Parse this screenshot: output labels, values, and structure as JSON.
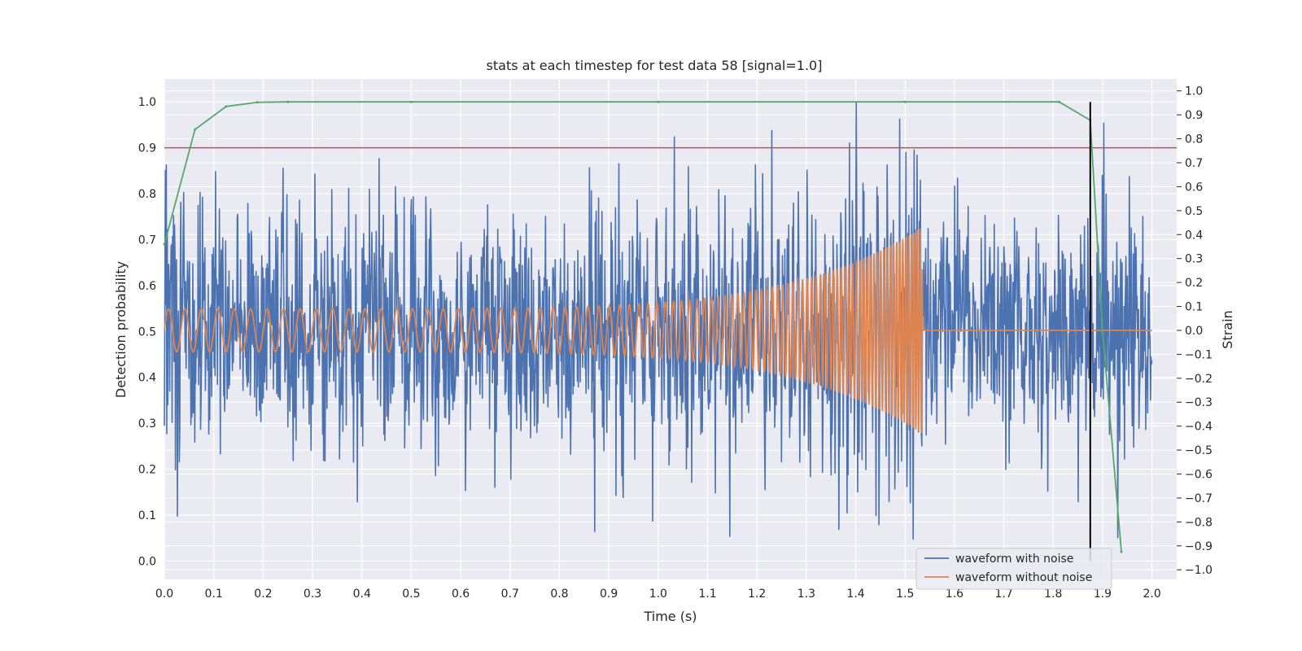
{
  "chart_data": {
    "type": "line",
    "title": "stats at each timestep for test data 58 [signal=1.0]",
    "xlabel": "Time (s)",
    "ylabel": "Detection probability",
    "y2label": "Strain",
    "xlim": [
      0.0,
      2.05
    ],
    "ylim": [
      -0.04,
      1.05
    ],
    "y2lim": [
      -1.04,
      1.05
    ],
    "xticks": [
      "0.0",
      "0.1",
      "0.2",
      "0.3",
      "0.4",
      "0.5",
      "0.6",
      "0.7",
      "0.8",
      "0.9",
      "1.0",
      "1.1",
      "1.2",
      "1.3",
      "1.4",
      "1.5",
      "1.6",
      "1.7",
      "1.8",
      "1.9",
      "2.0"
    ],
    "yticks": [
      "0.0",
      "0.1",
      "0.2",
      "0.3",
      "0.4",
      "0.5",
      "0.6",
      "0.7",
      "0.8",
      "0.9",
      "1.0"
    ],
    "y2ticks": [
      "−1.0",
      "−0.9",
      "−0.8",
      "−0.7",
      "−0.6",
      "−0.5",
      "−0.4",
      "−0.3",
      "−0.2",
      "−0.1",
      "0.0",
      "0.1",
      "0.2",
      "0.3",
      "0.4",
      "0.5",
      "0.6",
      "0.7",
      "0.8",
      "0.9",
      "1.0"
    ],
    "grid": true,
    "legend": {
      "placement": "lower-right",
      "entries": [
        "waveform with noise",
        "waveform without noise"
      ]
    },
    "colors": {
      "noise": "#4c72b0",
      "clean": "#dd8452",
      "probability": "#55a868",
      "threshold": "#c44e52",
      "marker": "#000000",
      "background": "#eaeaf2",
      "grid": "#ffffff"
    },
    "series": [
      {
        "name": "waveform with noise",
        "axis": "right",
        "x_range": [
          0.0,
          2.0
        ],
        "samples": 2048,
        "approx_std": 0.25,
        "approx_range": [
          -1.0,
          1.0
        ]
      },
      {
        "name": "waveform without noise",
        "axis": "right",
        "x_range": [
          0.0,
          1.535
        ],
        "chirp_start_amplitude": 0.09,
        "chirp_end_amplitude": 0.43,
        "chirp_start_frequency_hz": 30,
        "chirp_end_frequency_hz": 180,
        "after_merger_value": 0.0,
        "after_merger_x_range": [
          1.535,
          2.0
        ]
      },
      {
        "axis": "left",
        "x": [
          0.0,
          0.062,
          0.125,
          0.188,
          0.25,
          0.5,
          1.0,
          1.5,
          1.812,
          1.875,
          1.9,
          1.938
        ],
        "y": [
          0.69,
          0.94,
          0.99,
          0.999,
          1.0,
          1.0,
          1.0,
          1.0,
          1.0,
          0.96,
          0.5,
          0.02
        ]
      },
      {
        "axis": "left",
        "x": [
          0.0,
          2.05
        ],
        "y": [
          0.9,
          0.9
        ]
      },
      {
        "axis": "left",
        "x": [
          1.875,
          1.875
        ],
        "y": [
          0.0,
          1.0
        ]
      }
    ]
  }
}
